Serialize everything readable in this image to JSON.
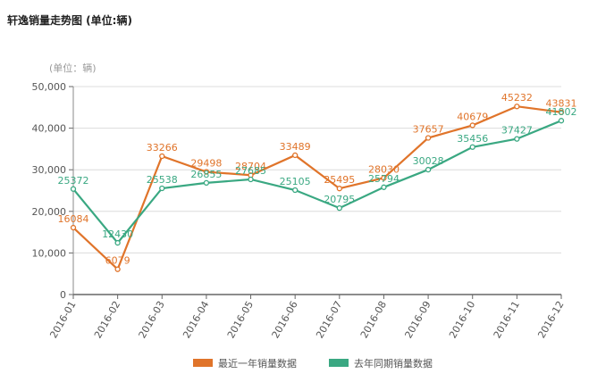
{
  "title": "轩逸销量走势图 (单位:辆)",
  "unit_label": "(单位：辆)",
  "colors": {
    "recent": "#e0742a",
    "lastyear": "#3aa882"
  },
  "chart_data": {
    "type": "line",
    "title": "轩逸销量走势图 (单位:辆)",
    "xlabel": "",
    "ylabel": "(单位：辆)",
    "ylim": [
      0,
      50000
    ],
    "yticks": [
      "0",
      "10,000",
      "20,000",
      "30,000",
      "40,000",
      "50,000"
    ],
    "grid": true,
    "legend_position": "bottom",
    "categories": [
      "2016-01",
      "2016-02",
      "2016-03",
      "2016-04",
      "2016-05",
      "2016-06",
      "2016-07",
      "2016-08",
      "2016-09",
      "2016-10",
      "2016-11",
      "2016-12"
    ],
    "series": [
      {
        "name": "最近一年销量数据",
        "values": [
          16084,
          6079,
          33266,
          29498,
          28704,
          33489,
          25495,
          28030,
          37657,
          40679,
          45232,
          43831
        ]
      },
      {
        "name": "去年同期销量数据",
        "values": [
          25372,
          12430,
          25538,
          26855,
          27685,
          25105,
          20795,
          25794,
          30028,
          35456,
          37427,
          41802
        ]
      }
    ]
  }
}
